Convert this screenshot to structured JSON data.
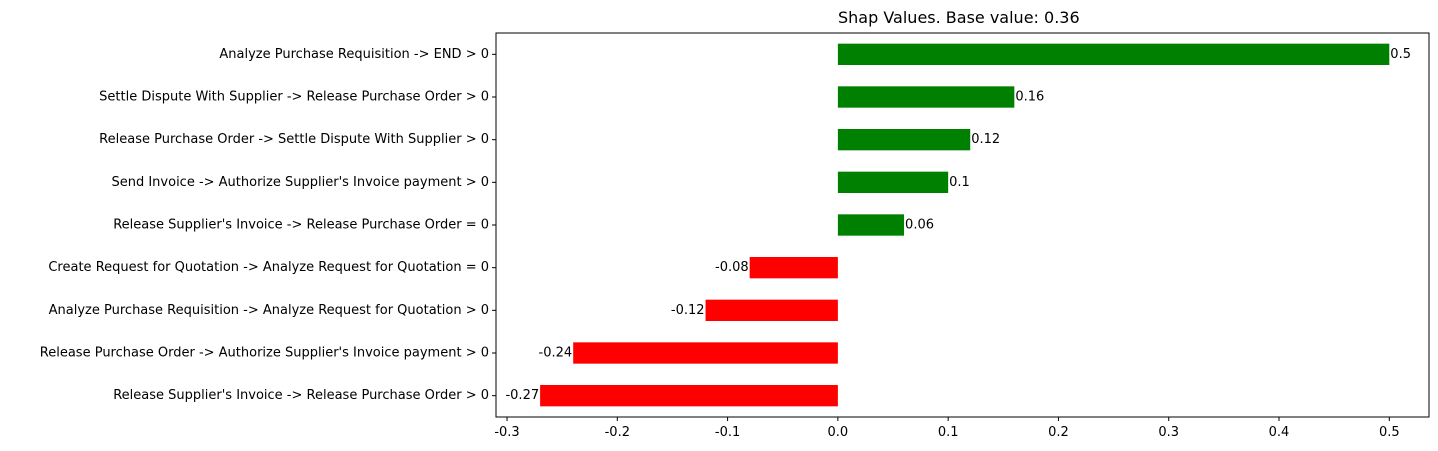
{
  "chart_data": {
    "type": "bar",
    "orientation": "horizontal",
    "title": "Shap Values. Base value: 0.36",
    "xlabel": "",
    "ylabel": "",
    "xlim": [
      -0.31,
      0.536
    ],
    "xticks": [
      "-0.3",
      "-0.2",
      "-0.1",
      "0.0",
      "0.1",
      "0.2",
      "0.3",
      "0.4",
      "0.5"
    ],
    "grid": false,
    "legend": "none",
    "positive_color": "#008000",
    "negative_color": "#ff0000",
    "categories": [
      "Analyze Purchase Requisition -> END > 0",
      "Settle Dispute With Supplier -> Release Purchase Order > 0",
      "Release Purchase Order -> Settle Dispute With Supplier > 0",
      "Send Invoice -> Authorize Supplier's Invoice payment > 0",
      "Release Supplier's Invoice -> Release Purchase Order = 0",
      "Create Request for Quotation -> Analyze Request for Quotation = 0",
      "Analyze Purchase Requisition -> Analyze Request for Quotation > 0",
      "Release Purchase Order -> Authorize Supplier's Invoice payment > 0",
      "Release Supplier's Invoice -> Release Purchase Order > 0"
    ],
    "values": [
      0.5,
      0.16,
      0.12,
      0.1,
      0.06,
      -0.08,
      -0.12,
      -0.24,
      -0.27
    ],
    "value_labels": [
      "0.5",
      "0.16",
      "0.12",
      "0.1",
      "0.06",
      "-0.08",
      "-0.12",
      "-0.24",
      "-0.27"
    ]
  }
}
